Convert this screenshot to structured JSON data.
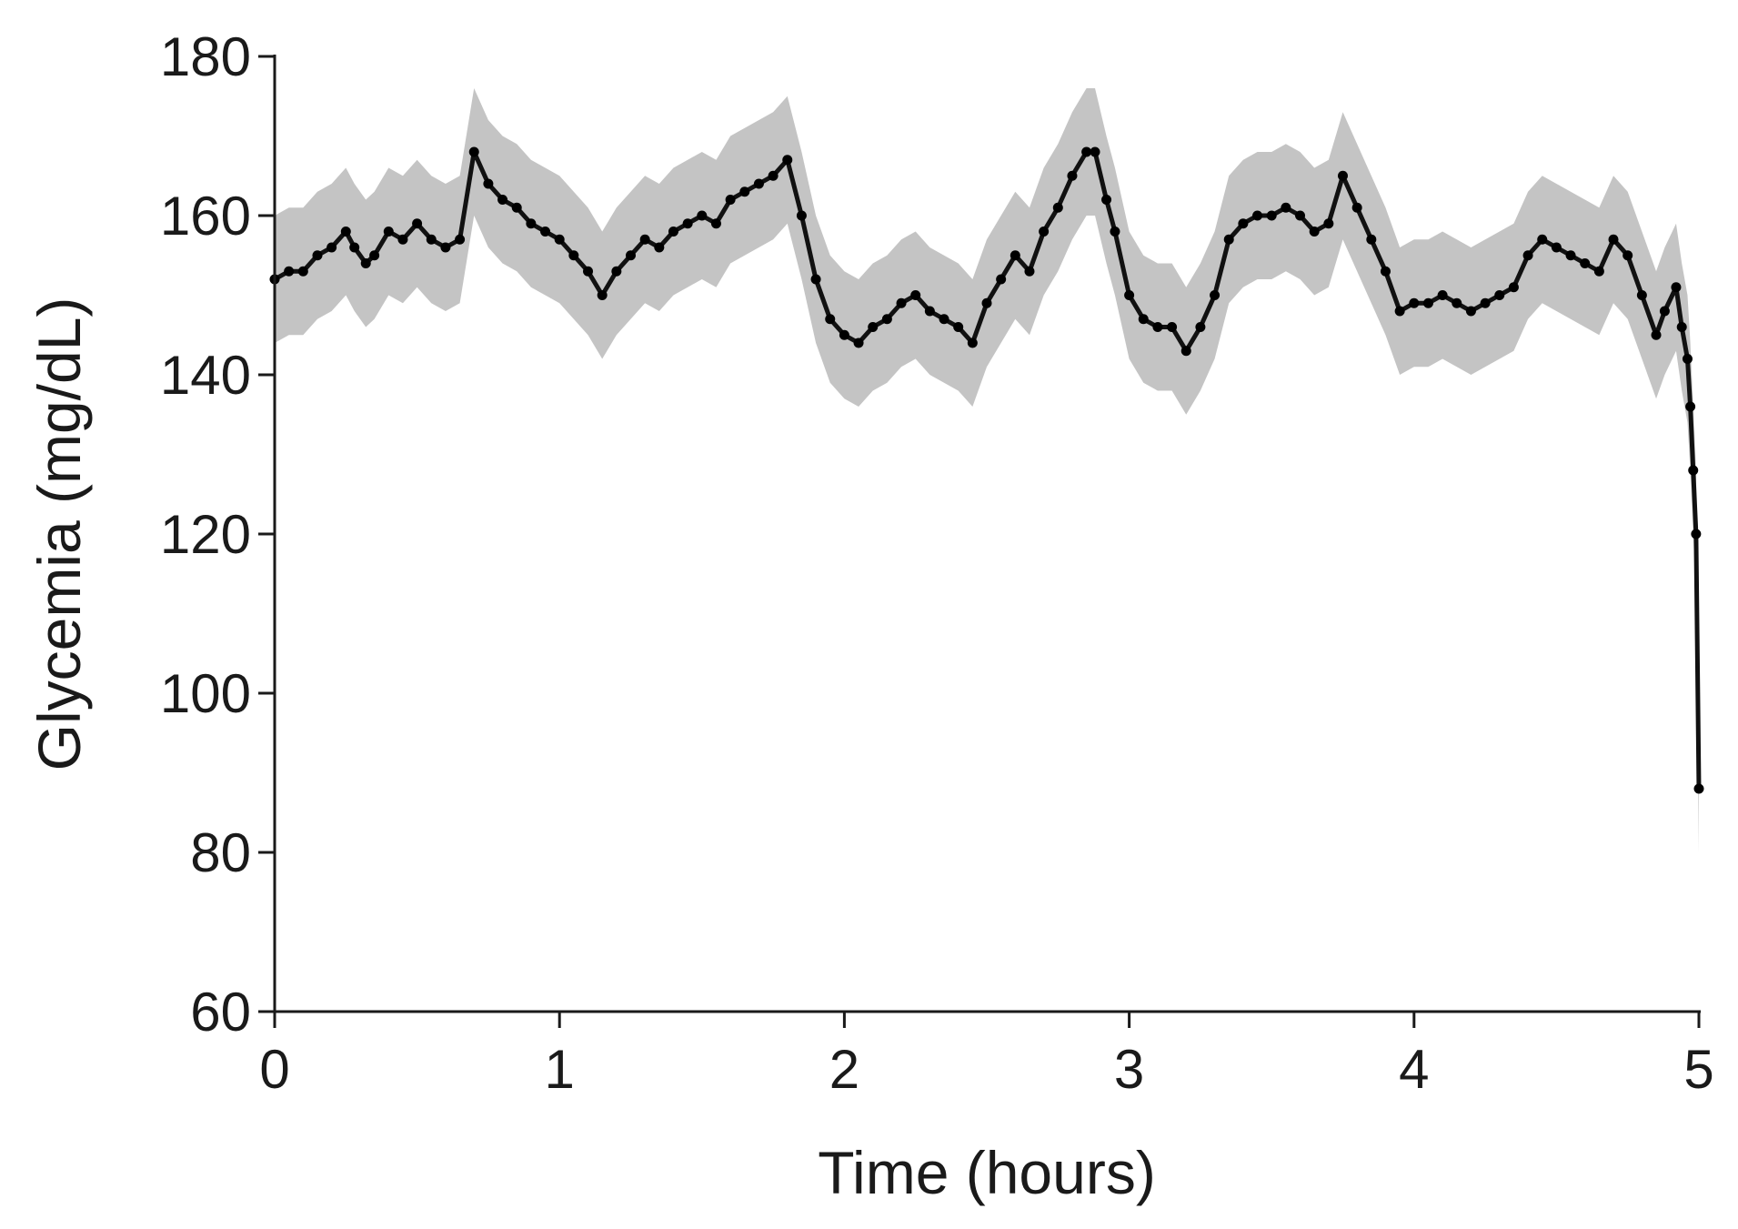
{
  "chart_data": {
    "type": "line",
    "xlabel": "Time (hours)",
    "ylabel": "Glycemia (mg/dL)",
    "xlim": [
      0,
      5
    ],
    "ylim": [
      60,
      180
    ],
    "x_ticks": [
      0,
      1,
      2,
      3,
      4,
      5
    ],
    "y_ticks": [
      60,
      80,
      100,
      120,
      140,
      160,
      180
    ],
    "grid": false,
    "band_half_width": 8,
    "series": [
      {
        "x": [
          0,
          0.05,
          0.1,
          0.15,
          0.2,
          0.25,
          0.28,
          0.32,
          0.35,
          0.4,
          0.45,
          0.5,
          0.55,
          0.6,
          0.65,
          0.7,
          0.75,
          0.8,
          0.85,
          0.9,
          0.95,
          1.0,
          1.05,
          1.1,
          1.15,
          1.2,
          1.25,
          1.3,
          1.35,
          1.4,
          1.45,
          1.5,
          1.55,
          1.6,
          1.65,
          1.7,
          1.75,
          1.8,
          1.85,
          1.9,
          1.95,
          2.0,
          2.05,
          2.1,
          2.15,
          2.2,
          2.25,
          2.3,
          2.35,
          2.4,
          2.45,
          2.5,
          2.55,
          2.6,
          2.65,
          2.7,
          2.75,
          2.8,
          2.85,
          2.88,
          2.92,
          2.95,
          3.0,
          3.05,
          3.1,
          3.15,
          3.2,
          3.25,
          3.3,
          3.35,
          3.4,
          3.45,
          3.5,
          3.55,
          3.6,
          3.65,
          3.7,
          3.75,
          3.8,
          3.85,
          3.9,
          3.95,
          4.0,
          4.05,
          4.1,
          4.15,
          4.2,
          4.25,
          4.3,
          4.35,
          4.4,
          4.45,
          4.5,
          4.55,
          4.6,
          4.65,
          4.7,
          4.75,
          4.8,
          4.85,
          4.88,
          4.92,
          4.94,
          4.96,
          4.97,
          4.98,
          4.99,
          5.0
        ],
        "y": [
          152,
          153,
          153,
          155,
          156,
          158,
          156,
          154,
          155,
          158,
          157,
          159,
          157,
          156,
          157,
          168,
          164,
          162,
          161,
          159,
          158,
          157,
          155,
          153,
          150,
          153,
          155,
          157,
          156,
          158,
          159,
          160,
          159,
          162,
          163,
          164,
          165,
          167,
          160,
          152,
          147,
          145,
          144,
          146,
          147,
          149,
          150,
          148,
          147,
          146,
          144,
          149,
          152,
          155,
          153,
          158,
          161,
          165,
          168,
          168,
          162,
          158,
          150,
          147,
          146,
          146,
          143,
          146,
          150,
          157,
          159,
          160,
          160,
          161,
          160,
          158,
          159,
          165,
          161,
          157,
          153,
          148,
          149,
          149,
          150,
          149,
          148,
          149,
          150,
          151,
          155,
          157,
          156,
          155,
          154,
          153,
          157,
          155,
          150,
          145,
          148,
          151,
          146,
          142,
          136,
          128,
          120,
          88
        ]
      }
    ]
  }
}
